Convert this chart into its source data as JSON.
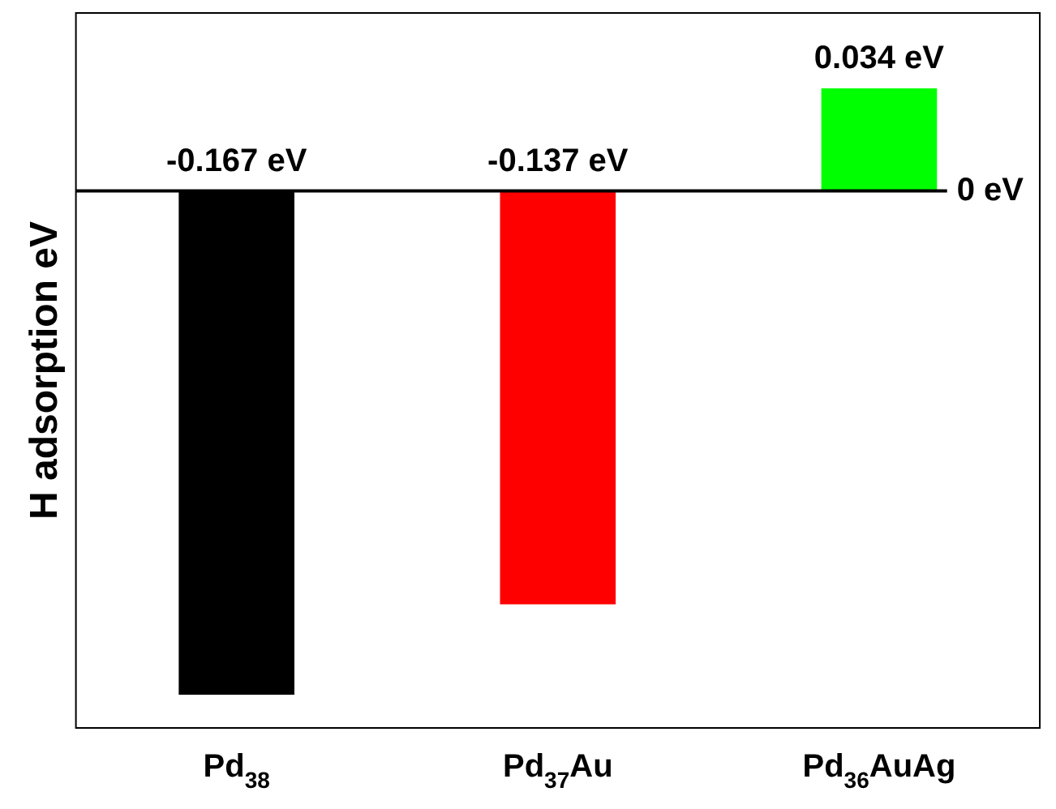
{
  "chart_data": {
    "type": "bar",
    "ylabel": "H adsorption eV",
    "categories": [
      "Pd$_{38}$",
      "Pd$_{37}$Au",
      "Pd$_{36}$AuAg"
    ],
    "values": [
      -0.167,
      -0.137,
      0.034
    ],
    "colors": [
      "#000000",
      "#ff0000",
      "#00ff00"
    ],
    "value_labels": [
      "-0.167 eV",
      "-0.137 eV",
      "0.034 eV"
    ],
    "ylim": [
      -0.178,
      0.059
    ],
    "ref_lines": [
      {
        "axis": "y",
        "value": 0,
        "label": "0 eV",
        "color": "#000000"
      }
    ],
    "grid": false,
    "legend": false
  }
}
